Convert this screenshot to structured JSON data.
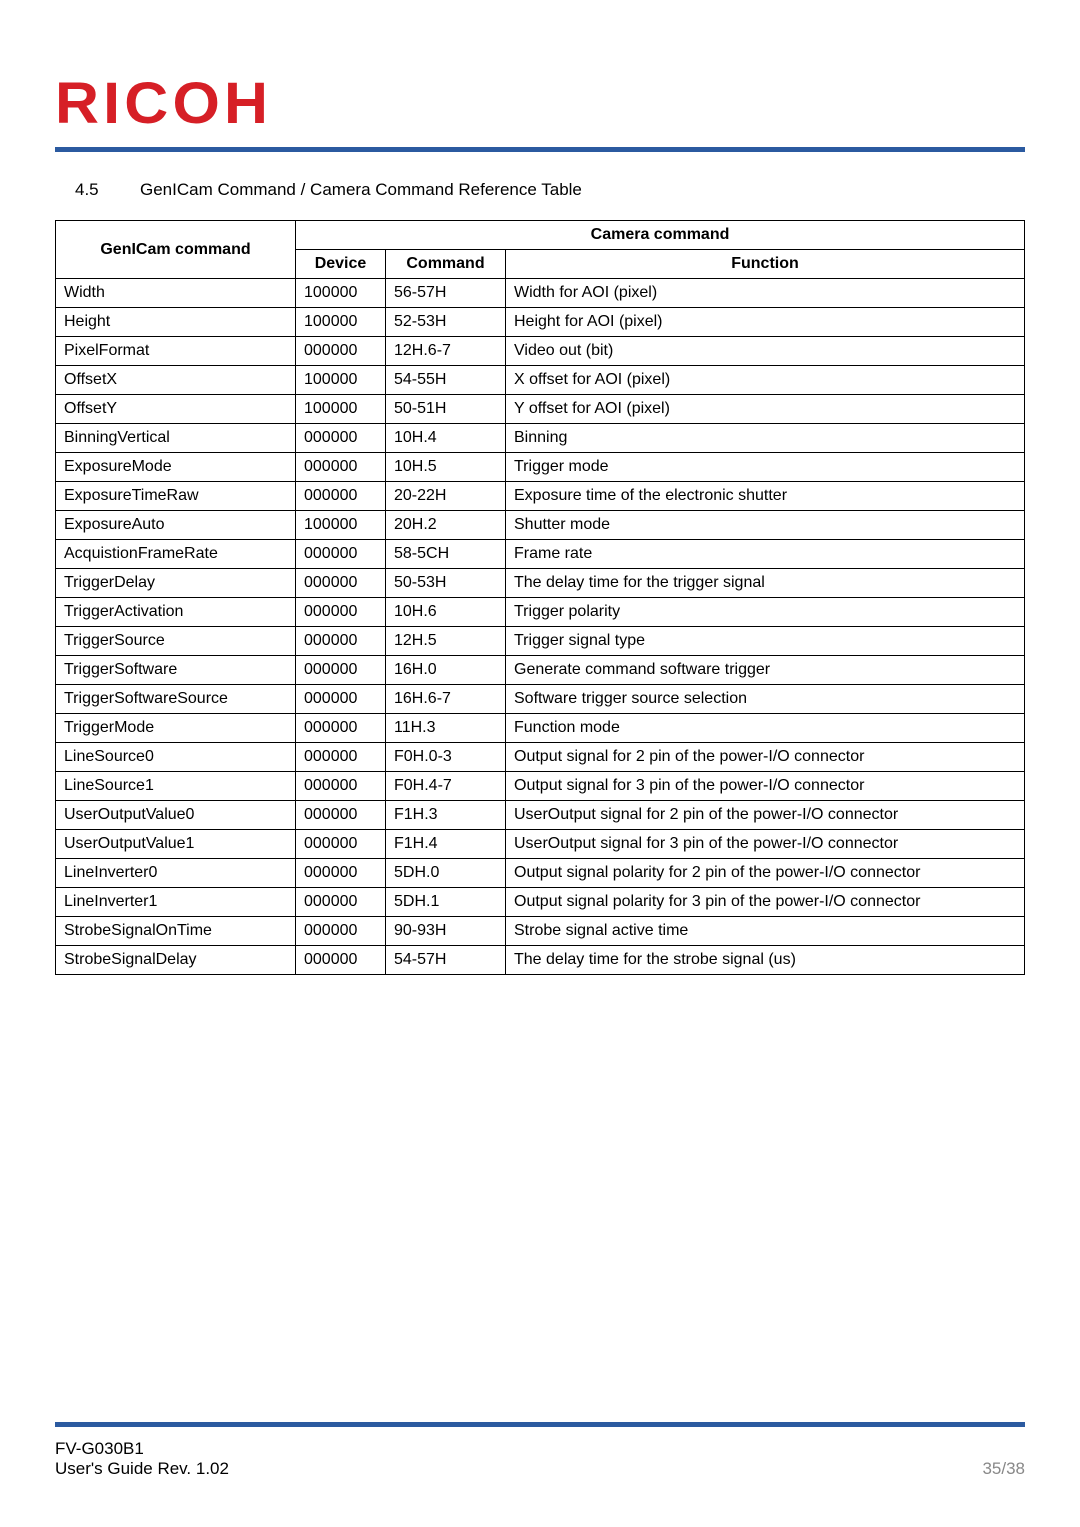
{
  "brand": {
    "logo_text": "RICOH",
    "logo_color": "#d61f26",
    "rule_color": "#2b5aa0"
  },
  "section": {
    "number": "4.5",
    "title": "GenICam Command / Camera Command Reference Table"
  },
  "table": {
    "headers": {
      "genicam": "GenICam command",
      "camera_group": "Camera command",
      "device": "Device",
      "command": "Command",
      "function": "Function"
    },
    "columns": [
      "genicam",
      "device",
      "command",
      "function"
    ],
    "rows": [
      {
        "genicam": "Width",
        "device": "100000",
        "command": "56-57H",
        "function": "Width for AOI (pixel)"
      },
      {
        "genicam": "Height",
        "device": "100000",
        "command": "52-53H",
        "function": "Height for AOI (pixel)"
      },
      {
        "genicam": "PixelFormat",
        "device": "000000",
        "command": "12H.6-7",
        "function": "Video out (bit)"
      },
      {
        "genicam": "OffsetX",
        "device": "100000",
        "command": "54-55H",
        "function": "X offset for AOI (pixel)"
      },
      {
        "genicam": "OffsetY",
        "device": "100000",
        "command": "50-51H",
        "function": "Y offset for AOI (pixel)"
      },
      {
        "genicam": "BinningVertical",
        "device": "000000",
        "command": "10H.4",
        "function": "Binning"
      },
      {
        "genicam": "ExposureMode",
        "device": "000000",
        "command": "10H.5",
        "function": "Trigger mode"
      },
      {
        "genicam": "ExposureTimeRaw",
        "device": "000000",
        "command": "20-22H",
        "function": "Exposure time of the electronic shutter"
      },
      {
        "genicam": "ExposureAuto",
        "device": "100000",
        "command": "20H.2",
        "function": "Shutter mode"
      },
      {
        "genicam": "AcquistionFrameRate",
        "device": "000000",
        "command": "58-5CH",
        "function": "Frame rate"
      },
      {
        "genicam": "TriggerDelay",
        "device": "000000",
        "command": "50-53H",
        "function": "The delay time for the trigger signal"
      },
      {
        "genicam": "TriggerActivation",
        "device": "000000",
        "command": "10H.6",
        "function": "Trigger polarity"
      },
      {
        "genicam": "TriggerSource",
        "device": "000000",
        "command": "12H.5",
        "function": "Trigger signal type"
      },
      {
        "genicam": "TriggerSoftware",
        "device": "000000",
        "command": "16H.0",
        "function": "Generate command software trigger"
      },
      {
        "genicam": "TriggerSoftwareSource",
        "device": "000000",
        "command": "16H.6-7",
        "function": "Software trigger source selection"
      },
      {
        "genicam": "TriggerMode",
        "device": "000000",
        "command": "11H.3",
        "function": "Function mode"
      },
      {
        "genicam": "LineSource0",
        "device": "000000",
        "command": "F0H.0-3",
        "function": "Output signal for 2 pin of the power-I/O connector"
      },
      {
        "genicam": "LineSource1",
        "device": "000000",
        "command": "F0H.4-7",
        "function": "Output signal for 3 pin of the power-I/O connector"
      },
      {
        "genicam": "UserOutputValue0",
        "device": "000000",
        "command": "F1H.3",
        "function": "UserOutput signal for 2 pin of the power-I/O connector"
      },
      {
        "genicam": "UserOutputValue1",
        "device": "000000",
        "command": "F1H.4",
        "function": "UserOutput signal for 3 pin of the power-I/O connector"
      },
      {
        "genicam": "LineInverter0",
        "device": "000000",
        "command": "5DH.0",
        "function": "Output signal polarity for 2 pin of the power-I/O connector"
      },
      {
        "genicam": "LineInverter1",
        "device": "000000",
        "command": "5DH.1",
        "function": "Output signal polarity for 3 pin of the power-I/O connector"
      },
      {
        "genicam": "StrobeSignalOnTime",
        "device": "000000",
        "command": "90-93H",
        "function": "Strobe signal active time"
      },
      {
        "genicam": "StrobeSignalDelay",
        "device": "000000",
        "command": "54-57H",
        "function": "The delay time for the strobe signal (us)"
      }
    ]
  },
  "footer": {
    "left_line1": "FV-G030B1",
    "left_line2": "User's Guide Rev. 1.02",
    "page": "35/38"
  }
}
